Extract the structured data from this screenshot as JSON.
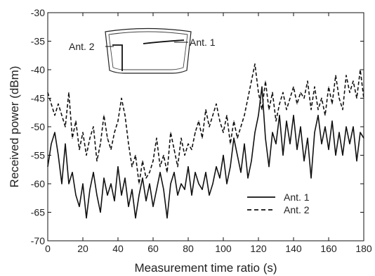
{
  "chart_data": {
    "type": "line",
    "xlabel": "Measurement time ratio (s)",
    "ylabel": "Received power (dBm)",
    "xlim": [
      0,
      180
    ],
    "ylim": [
      -70,
      -30
    ],
    "xticks": [
      0,
      20,
      40,
      60,
      80,
      100,
      120,
      140,
      160,
      180
    ],
    "yticks": [
      -70,
      -65,
      -60,
      -55,
      -50,
      -45,
      -40,
      -35,
      -30
    ],
    "grid": false,
    "legend_position": "bottom-right",
    "series": [
      {
        "name": "Ant. 1",
        "line_style": "solid",
        "color": "#111111",
        "x": [
          0,
          2,
          4,
          6,
          8,
          10,
          12,
          14,
          16,
          18,
          20,
          22,
          24,
          26,
          28,
          30,
          32,
          34,
          36,
          38,
          40,
          42,
          44,
          46,
          48,
          50,
          52,
          54,
          56,
          58,
          60,
          62,
          64,
          66,
          68,
          70,
          72,
          74,
          76,
          78,
          80,
          82,
          84,
          86,
          88,
          90,
          92,
          94,
          96,
          98,
          100,
          102,
          104,
          106,
          108,
          110,
          112,
          114,
          116,
          118,
          120,
          122,
          124,
          126,
          128,
          130,
          132,
          134,
          136,
          138,
          140,
          142,
          144,
          146,
          148,
          150,
          152,
          154,
          156,
          158,
          160,
          162,
          164,
          166,
          168,
          170,
          172,
          174,
          176,
          178,
          180
        ],
        "y": [
          -57,
          -53,
          -51,
          -55,
          -60,
          -53,
          -60,
          -58,
          -62,
          -64,
          -60,
          -66,
          -61,
          -58,
          -62,
          -65,
          -59,
          -62,
          -60,
          -63,
          -57,
          -62,
          -59,
          -64,
          -61,
          -66,
          -62,
          -59,
          -63,
          -60,
          -64,
          -61,
          -58,
          -61,
          -66,
          -60,
          -58,
          -62,
          -60,
          -61,
          -57,
          -62,
          -58,
          -60,
          -61,
          -58,
          -62,
          -60,
          -57,
          -59,
          -55,
          -60,
          -57,
          -52,
          -55,
          -58,
          -53,
          -59,
          -56,
          -51,
          -48,
          -43,
          -52,
          -57,
          -51,
          -53,
          -48,
          -55,
          -49,
          -53,
          -48,
          -54,
          -50,
          -56,
          -52,
          -59,
          -51,
          -48,
          -53,
          -50,
          -54,
          -49,
          -55,
          -51,
          -55,
          -50,
          -53,
          -50,
          -56,
          -51,
          -52
        ]
      },
      {
        "name": "Ant. 2",
        "line_style": "dashed",
        "color": "#111111",
        "x": [
          0,
          2,
          4,
          6,
          8,
          10,
          12,
          14,
          16,
          18,
          20,
          22,
          24,
          26,
          28,
          30,
          32,
          34,
          36,
          38,
          40,
          42,
          44,
          46,
          48,
          50,
          52,
          54,
          56,
          58,
          60,
          62,
          64,
          66,
          68,
          70,
          72,
          74,
          76,
          78,
          80,
          82,
          84,
          86,
          88,
          90,
          92,
          94,
          96,
          98,
          100,
          102,
          104,
          106,
          108,
          110,
          112,
          114,
          116,
          118,
          120,
          122,
          124,
          126,
          128,
          130,
          132,
          134,
          136,
          138,
          140,
          142,
          144,
          146,
          148,
          150,
          152,
          154,
          156,
          158,
          160,
          162,
          164,
          166,
          168,
          170,
          172,
          174,
          176,
          178,
          180
        ],
        "y": [
          -44,
          -46,
          -48,
          -46,
          -48,
          -50,
          -44,
          -52,
          -49,
          -54,
          -51,
          -55,
          -52,
          -50,
          -56,
          -53,
          -48,
          -52,
          -54,
          -51,
          -49,
          -45,
          -48,
          -53,
          -57,
          -55,
          -60,
          -56,
          -59,
          -58,
          -56,
          -52,
          -57,
          -55,
          -58,
          -51,
          -54,
          -57,
          -52,
          -55,
          -53,
          -54,
          -51,
          -49,
          -52,
          -47,
          -50,
          -48,
          -46,
          -49,
          -51,
          -48,
          -53,
          -49,
          -52,
          -50,
          -48,
          -45,
          -42,
          -39,
          -44,
          -47,
          -42,
          -47,
          -44,
          -49,
          -46,
          -44,
          -47,
          -45,
          -43,
          -46,
          -44,
          -45,
          -42,
          -47,
          -43,
          -47,
          -45,
          -48,
          -43,
          -46,
          -41,
          -45,
          -47,
          -41,
          -44,
          -42,
          -45,
          -40,
          -45
        ]
      }
    ],
    "inset": {
      "labels": [
        "Ant. 2",
        "Ant. 1"
      ]
    }
  }
}
